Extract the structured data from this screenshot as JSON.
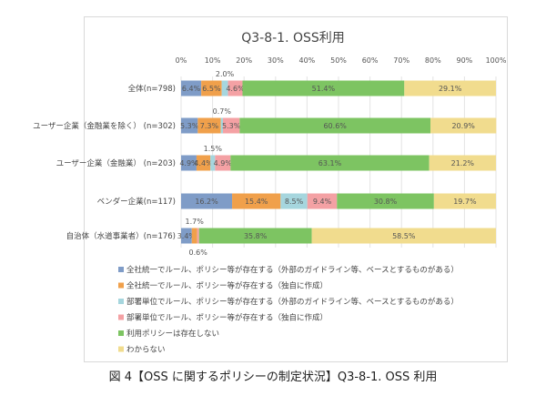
{
  "chart_data": {
    "type": "bar",
    "orientation": "horizontal",
    "stacked": true,
    "title": "Q3-8-1. OSS利用",
    "xlim": [
      0,
      100
    ],
    "x_ticks": [
      "0%",
      "10%",
      "20%",
      "30%",
      "40%",
      "50%",
      "60%",
      "70%",
      "80%",
      "90%",
      "100%"
    ],
    "grid": true,
    "legend_position": "bottom",
    "categories": [
      "全体(n=798)",
      "ユーザー企業（金融業を除く） (n=302)",
      "ユーザー企業（金融業） (n=203)",
      "ベンダー企業(n=117)",
      "自治体（水道事業者）(n=176)"
    ],
    "series": [
      {
        "name": "全社統一でルール、ポリシー等が存在する（外部のガイドライン等、ベースとするものがある）",
        "color": "#7f9cc7",
        "values": [
          6.4,
          5.3,
          4.9,
          16.2,
          3.4
        ]
      },
      {
        "name": "全社統一でルール、ポリシー等が存在する（独自に作成）",
        "color": "#f0a04b",
        "values": [
          6.5,
          7.3,
          4.4,
          15.4,
          1.7
        ]
      },
      {
        "name": "部署単位でルール、ポリシー等が存在する（外部のガイドライン等、ベースとするものがある）",
        "color": "#a6d6de",
        "values": [
          2.0,
          0.7,
          1.5,
          8.5,
          0.0
        ]
      },
      {
        "name": "部署単位でルール、ポリシー等が存在する（独自に作成）",
        "color": "#f4a1a4",
        "values": [
          4.6,
          5.3,
          4.9,
          9.4,
          0.6
        ]
      },
      {
        "name": "利用ポリシーは存在しない",
        "color": "#7dc462",
        "values": [
          51.4,
          60.6,
          63.1,
          30.8,
          35.8
        ]
      },
      {
        "name": "わからない",
        "color": "#f1dc8e",
        "values": [
          29.1,
          20.9,
          21.2,
          19.7,
          58.5
        ]
      }
    ]
  },
  "caption": "図 4【OSS に関するポリシーの制定状況】Q3-8-1. OSS 利用"
}
